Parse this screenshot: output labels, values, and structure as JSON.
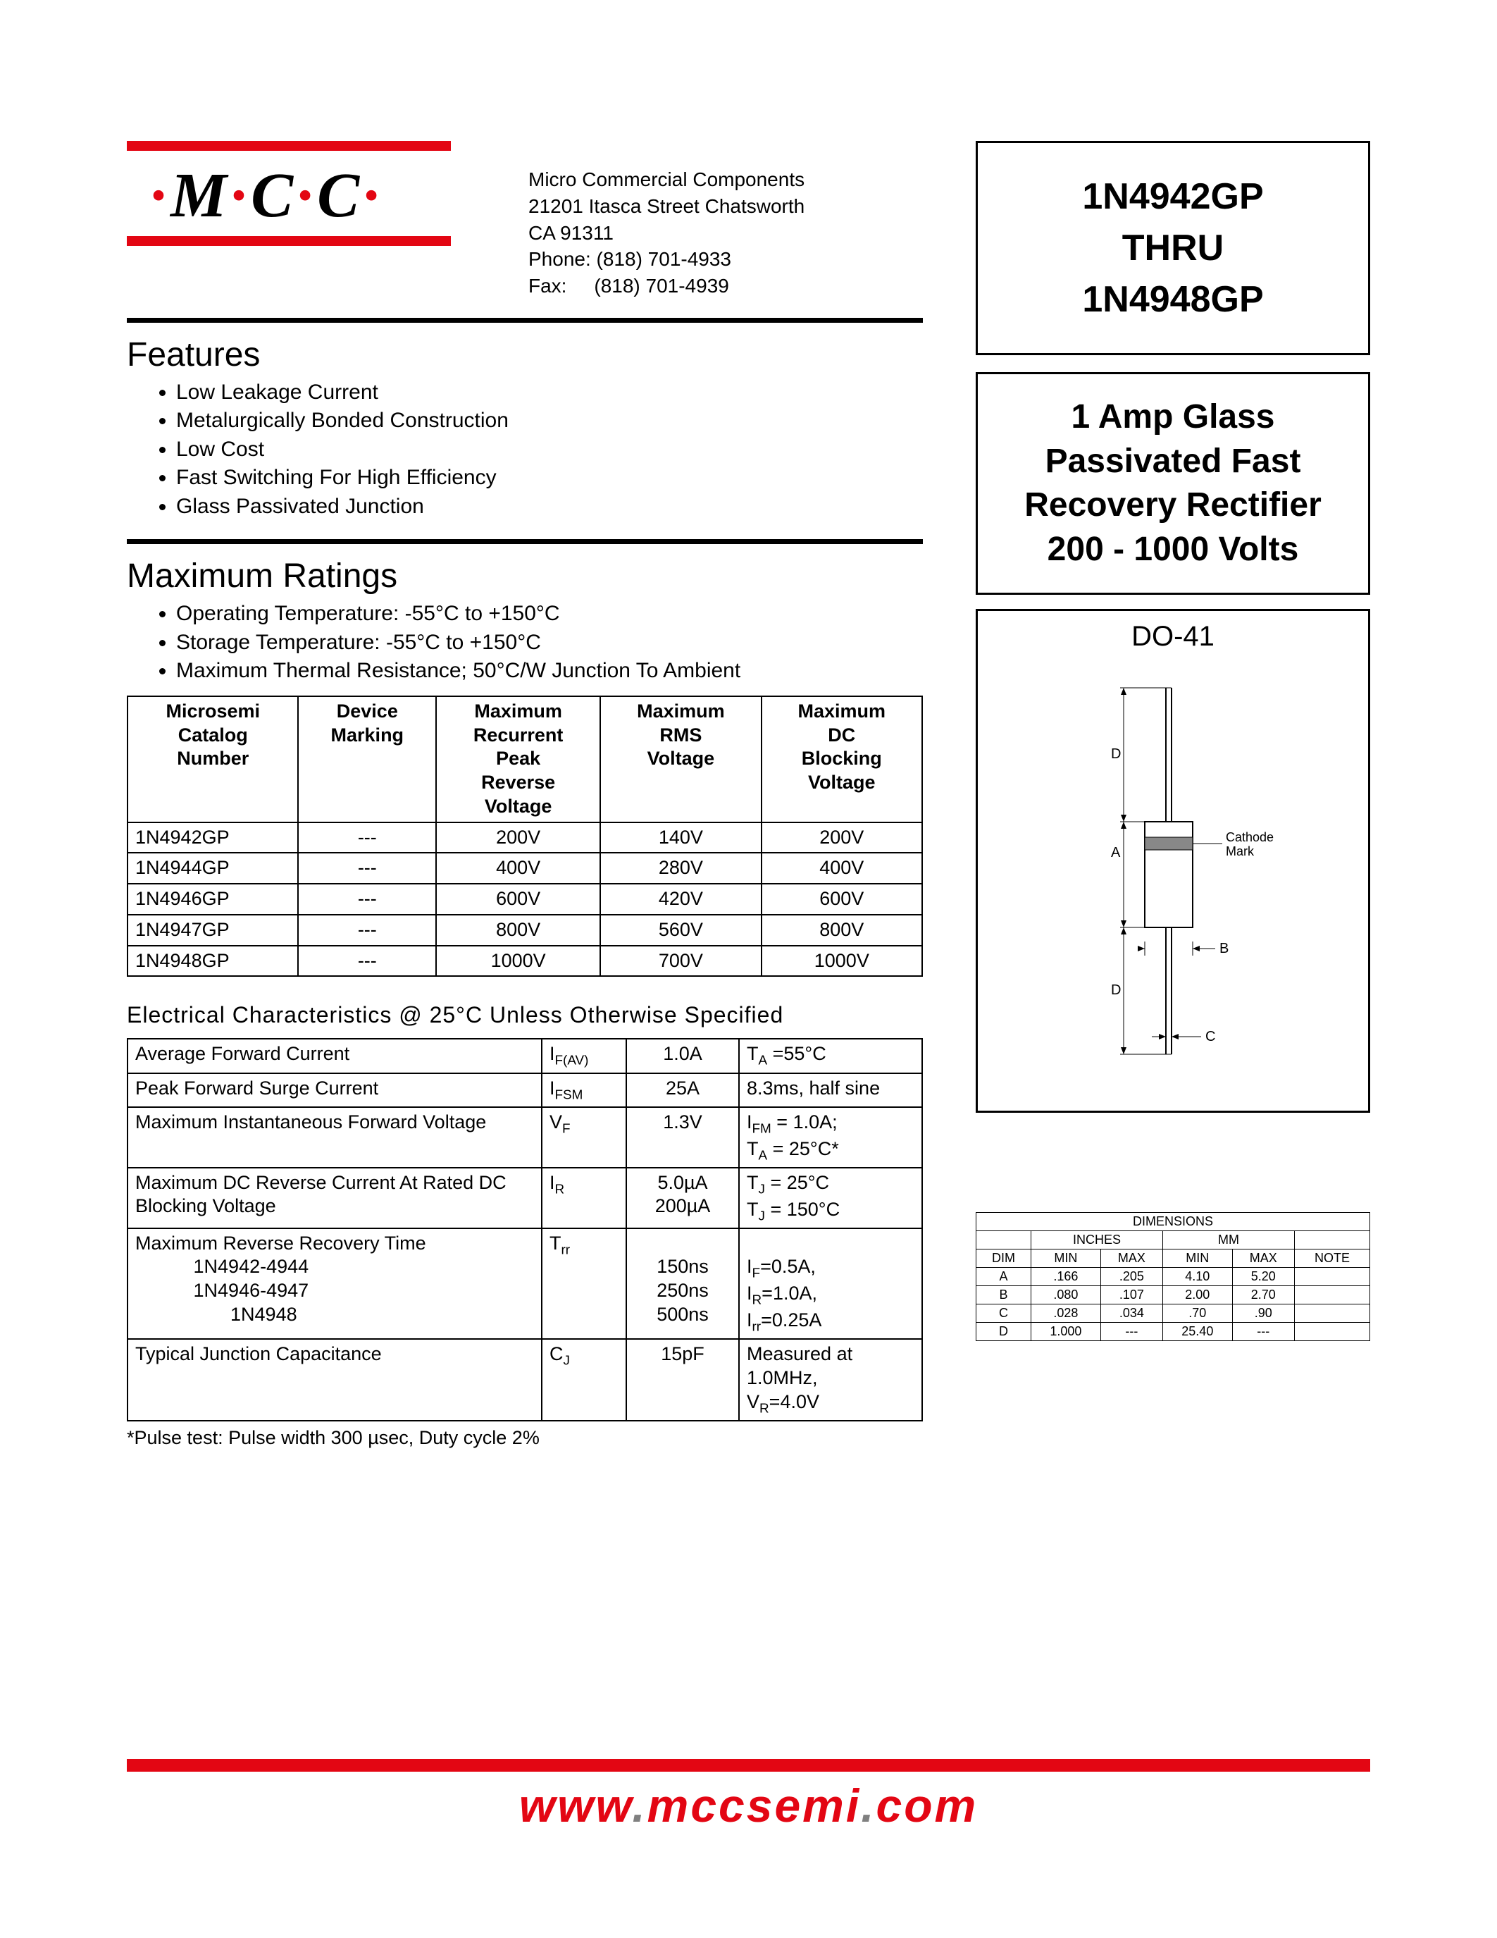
{
  "logo": {
    "text_parts": [
      "M",
      "C",
      "C"
    ],
    "dot": "·"
  },
  "company": {
    "name": "Micro Commercial Components",
    "addr1": "21201 Itasca Street Chatsworth",
    "addr2": "CA 91311",
    "phone_label": "Phone:",
    "phone": "(818) 701-4933",
    "fax_label": "Fax:",
    "fax": "(818) 701-4939"
  },
  "part_box": {
    "line1": "1N4942GP",
    "line2": "THRU",
    "line3": "1N4948GP"
  },
  "desc_box": "1 Amp Glass Passivated Fast Recovery Rectifier 200 - 1000 Volts",
  "package": {
    "title": "DO-41",
    "cathode_label": "Cathode Mark",
    "dims_label_A": "A",
    "dims_label_B": "B",
    "dims_label_C": "C",
    "dims_label_D": "D"
  },
  "features": {
    "title": "Features",
    "items": [
      "Low Leakage Current",
      "Metalurgically Bonded Construction",
      "Low Cost",
      "Fast Switching For High Efficiency",
      "Glass Passivated Junction"
    ]
  },
  "max_ratings": {
    "title": "Maximum Ratings",
    "bullets": [
      "Operating Temperature: -55°C to +150°C",
      "Storage Temperature: -55°C to +150°C",
      "Maximum Thermal Resistance; 50°C/W Junction To Ambient"
    ],
    "headers": [
      "Microsemi Catalog Number",
      "Device Marking",
      "Maximum Recurrent Peak Reverse Voltage",
      "Maximum RMS Voltage",
      "Maximum DC Blocking Voltage"
    ],
    "rows": [
      [
        "1N4942GP",
        "---",
        "200V",
        "140V",
        "200V"
      ],
      [
        "1N4944GP",
        "---",
        "400V",
        "280V",
        "400V"
      ],
      [
        "1N4946GP",
        "---",
        "600V",
        "420V",
        "600V"
      ],
      [
        "1N4947GP",
        "---",
        "800V",
        "560V",
        "800V"
      ],
      [
        "1N4948GP",
        "---",
        "1000V",
        "700V",
        "1000V"
      ]
    ]
  },
  "elec": {
    "title": "Electrical Characteristics @ 25°C Unless Otherwise Specified",
    "rows": [
      {
        "p": "Average Forward Current",
        "s": "I<sub>F(AV)</sub>",
        "v": "1.0A",
        "c": "T<sub>A</sub> =55°C"
      },
      {
        "p": "Peak Forward Surge Current",
        "s": "I<sub>FSM</sub>",
        "v": "25A",
        "c": "8.3ms, half sine"
      },
      {
        "p": "Maximum Instantaneous Forward Voltage",
        "s": "V<sub>F</sub>",
        "v": "1.3V",
        "c": "I<sub>FM</sub> = 1.0A;<br>T<sub>A</sub> = 25°C*"
      },
      {
        "p": "Maximum DC Reverse Current At Rated DC Blocking Voltage",
        "s": "I<sub>R</sub>",
        "v": "5.0µA<br>200µA",
        "c": "T<sub>J</sub> = 25°C<br>T<sub>J</sub> = 150°C"
      },
      {
        "p": "Maximum Reverse Recovery Time<br>&nbsp;&nbsp;&nbsp;&nbsp;&nbsp;&nbsp;&nbsp;&nbsp;&nbsp;&nbsp;&nbsp;1N4942-4944<br>&nbsp;&nbsp;&nbsp;&nbsp;&nbsp;&nbsp;&nbsp;&nbsp;&nbsp;&nbsp;&nbsp;1N4946-4947<br>&nbsp;&nbsp;&nbsp;&nbsp;&nbsp;&nbsp;&nbsp;&nbsp;&nbsp;&nbsp;&nbsp;&nbsp;&nbsp;&nbsp;&nbsp;&nbsp;&nbsp;&nbsp;1N4948",
        "s": "T<sub>rr</sub>",
        "v": "<br>150ns<br>250ns<br>500ns",
        "c": "<br>I<sub>F</sub>=0.5A,<br>I<sub>R</sub>=1.0A,<br>I<sub>rr</sub>=0.25A"
      },
      {
        "p": "Typical Junction Capacitance",
        "s": "C<sub>J</sub>",
        "v": "15pF",
        "c": "Measured at 1.0MHz,<br>V<sub>R</sub>=4.0V"
      }
    ],
    "footnote": "*Pulse test: Pulse width 300 µsec, Duty cycle 2%"
  },
  "dimensions": {
    "title": "DIMENSIONS",
    "unit1": "INCHES",
    "unit2": "MM",
    "cols": [
      "DIM",
      "MIN",
      "MAX",
      "MIN",
      "MAX",
      "NOTE"
    ],
    "rows": [
      [
        "A",
        ".166",
        ".205",
        "4.10",
        "5.20",
        ""
      ],
      [
        "B",
        ".080",
        ".107",
        "2.00",
        "2.70",
        ""
      ],
      [
        "C",
        ".028",
        ".034",
        ".70",
        ".90",
        ""
      ],
      [
        "D",
        "1.000",
        "---",
        "25.40",
        "---",
        ""
      ]
    ]
  },
  "footer": {
    "w": "www",
    "d1": ".",
    "h": "mccsemi",
    "d2": ".",
    "t": "com"
  },
  "colors": {
    "red": "#e30613",
    "gray": "#808080",
    "black": "#000000"
  }
}
